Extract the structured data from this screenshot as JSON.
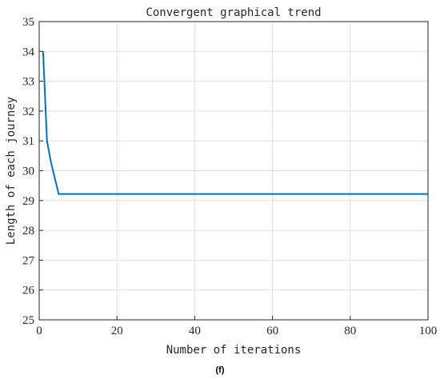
{
  "chart_data": {
    "type": "line",
    "title": "Convergent graphical trend",
    "xlabel": "Number of iterations",
    "ylabel": "Length of each journey",
    "xlim": [
      0,
      100
    ],
    "ylim": [
      25,
      35
    ],
    "xticks": [
      0,
      20,
      40,
      60,
      80,
      100
    ],
    "yticks": [
      25,
      26,
      27,
      28,
      29,
      30,
      31,
      32,
      33,
      34,
      35
    ],
    "grid": true,
    "line_color": "#0072BD",
    "series": [
      {
        "x": [
          1,
          2,
          3,
          5,
          100
        ],
        "y": [
          34.0,
          31.0,
          30.3,
          29.22,
          29.22
        ]
      }
    ]
  },
  "caption": "(f)"
}
